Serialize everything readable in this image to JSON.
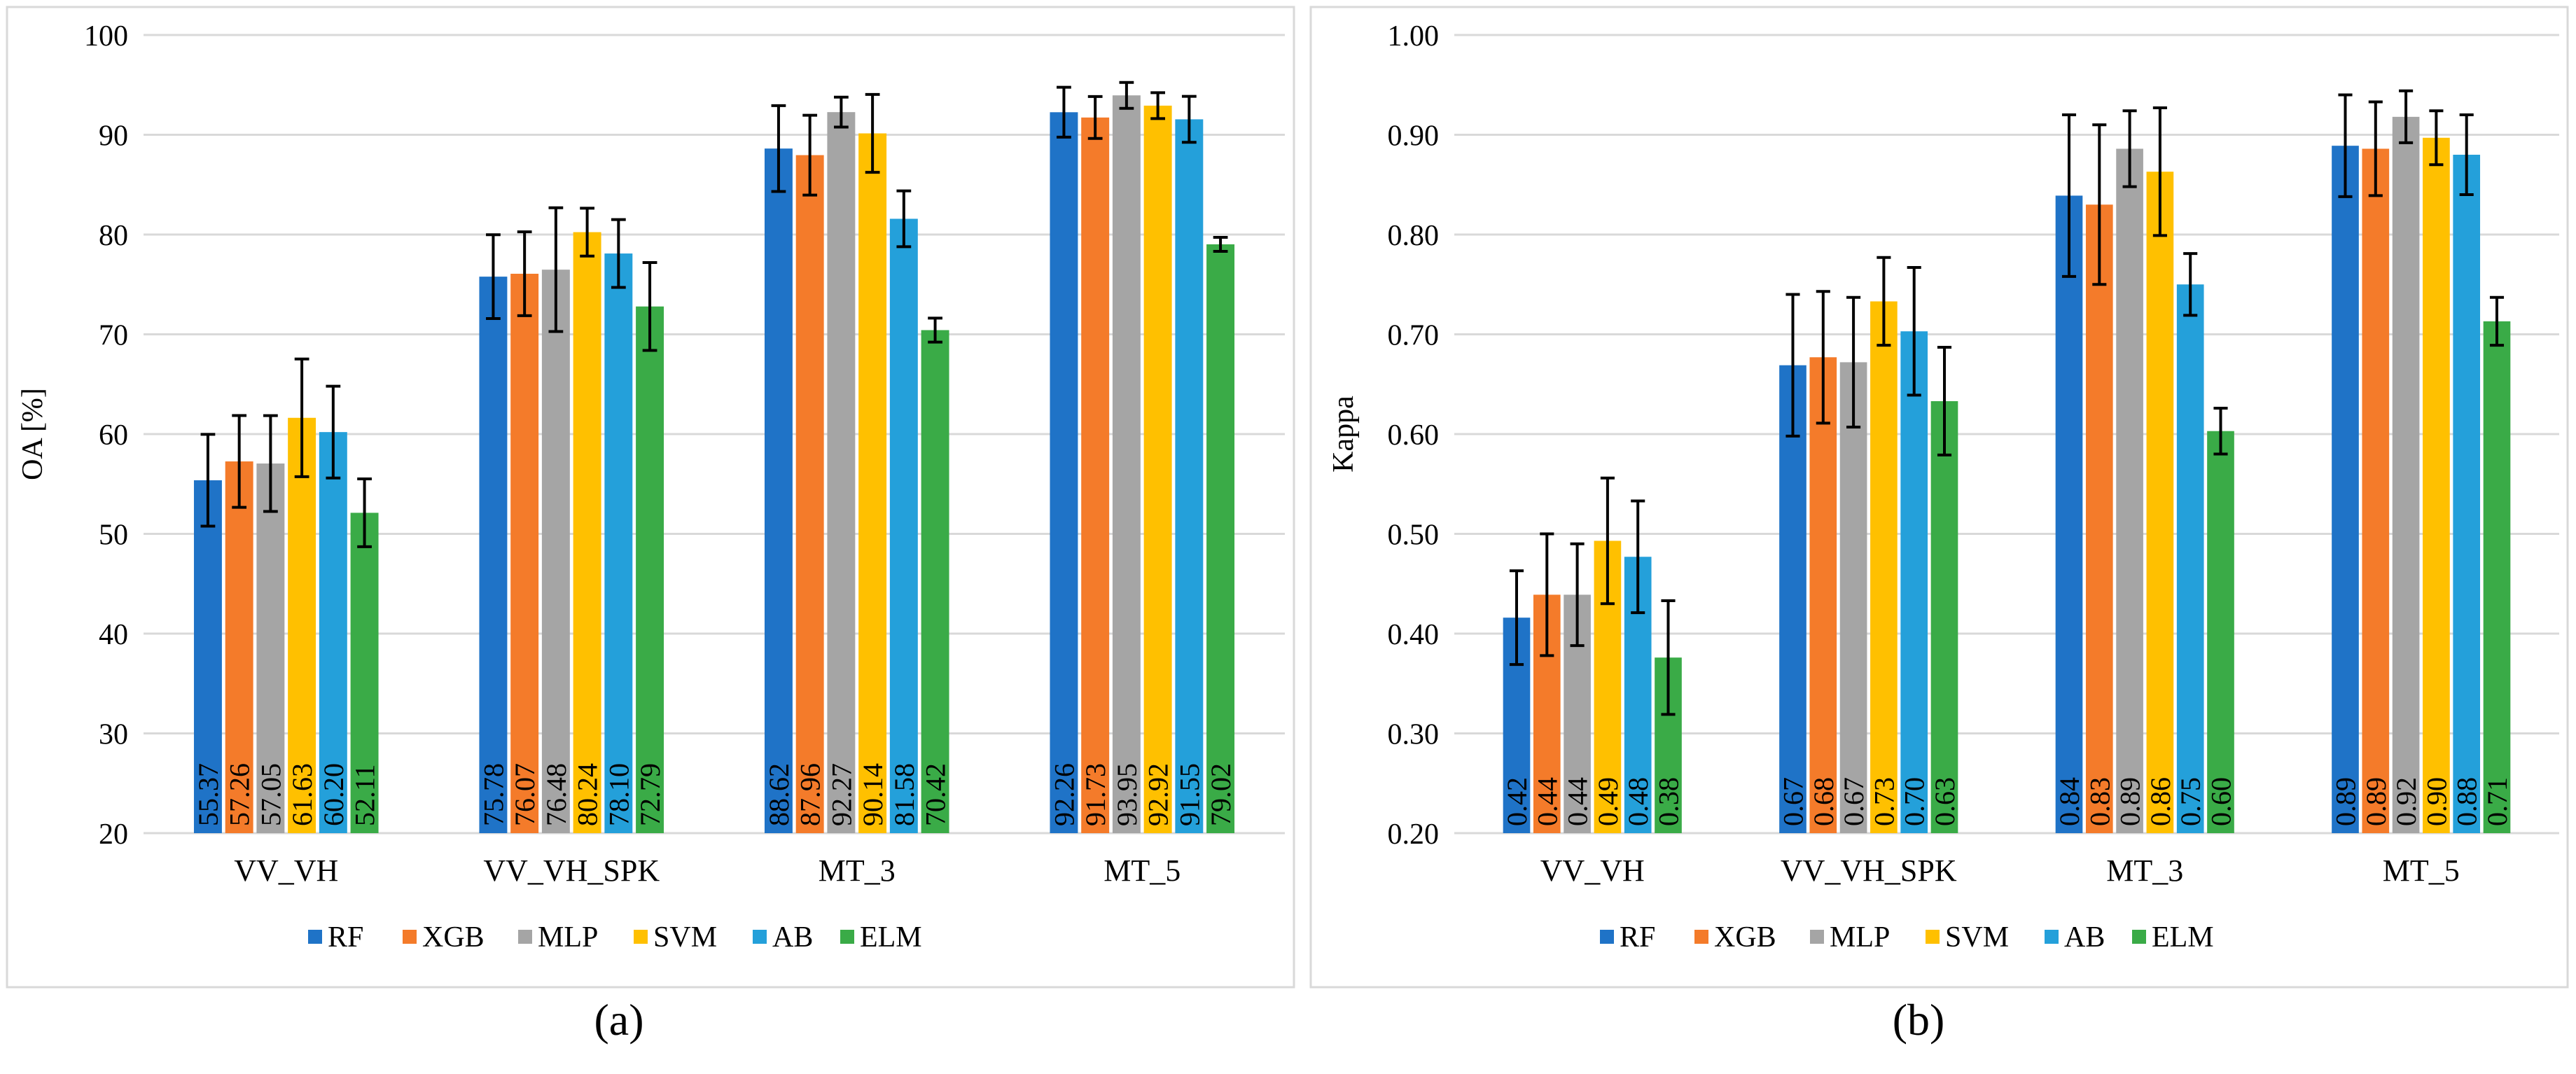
{
  "figure": {
    "panel_labels": [
      "(a)",
      "(b)"
    ]
  },
  "chart_data": [
    {
      "type": "bar",
      "panel": "(a)",
      "title": "",
      "xlabel": "",
      "ylabel": "OA [%]",
      "ylim": [
        20,
        100
      ],
      "ytick_step": 10,
      "ytick_decimals": 0,
      "value_decimals": 2,
      "grid": true,
      "legend_position": "bottom",
      "categories": [
        "VV_VH",
        "VV_VH_SPK",
        "MT_3",
        "MT_5"
      ],
      "series": [
        {
          "name": "RF",
          "color": "#1f73c7",
          "values": [
            55.37,
            75.78,
            88.62,
            92.26
          ],
          "error": [
            4.6,
            4.2,
            4.3,
            2.5
          ]
        },
        {
          "name": "XGB",
          "color": "#f47b2a",
          "values": [
            57.26,
            76.07,
            87.96,
            91.73
          ],
          "error": [
            4.6,
            4.2,
            4.0,
            2.1
          ]
        },
        {
          "name": "MLP",
          "color": "#a5a5a5",
          "values": [
            57.05,
            76.48,
            92.27,
            93.95
          ],
          "error": [
            4.8,
            6.2,
            1.5,
            1.3
          ]
        },
        {
          "name": "SVM",
          "color": "#ffc000",
          "values": [
            61.63,
            80.24,
            90.14,
            92.92
          ],
          "error": [
            5.9,
            2.4,
            3.9,
            1.3
          ]
        },
        {
          "name": "AB",
          "color": "#24a0da",
          "values": [
            60.2,
            78.1,
            81.58,
            91.55
          ],
          "error": [
            4.6,
            3.4,
            2.8,
            2.3
          ]
        },
        {
          "name": "ELM",
          "color": "#3aab47",
          "values": [
            52.11,
            72.79,
            70.42,
            79.02
          ],
          "error": [
            3.4,
            4.4,
            1.2,
            0.7
          ]
        }
      ]
    },
    {
      "type": "bar",
      "panel": "(b)",
      "title": "",
      "xlabel": "",
      "ylabel": "Kappa",
      "ylim": [
        0.2,
        1.0
      ],
      "ytick_step": 0.1,
      "ytick_decimals": 2,
      "value_decimals": 2,
      "grid": true,
      "legend_position": "bottom",
      "categories": [
        "VV_VH",
        "VV_VH_SPK",
        "MT_3",
        "MT_5"
      ],
      "series": [
        {
          "name": "RF",
          "color": "#1f73c7",
          "values": [
            0.416,
            0.669,
            0.839,
            0.889
          ],
          "error": [
            0.047,
            0.071,
            0.081,
            0.051
          ]
        },
        {
          "name": "XGB",
          "color": "#f47b2a",
          "values": [
            0.439,
            0.677,
            0.83,
            0.886
          ],
          "error": [
            0.061,
            0.066,
            0.08,
            0.047
          ]
        },
        {
          "name": "MLP",
          "color": "#a5a5a5",
          "values": [
            0.439,
            0.672,
            0.886,
            0.918
          ],
          "error": [
            0.051,
            0.065,
            0.038,
            0.026
          ]
        },
        {
          "name": "SVM",
          "color": "#ffc000",
          "values": [
            0.493,
            0.733,
            0.863,
            0.897
          ],
          "error": [
            0.063,
            0.044,
            0.064,
            0.027
          ]
        },
        {
          "name": "AB",
          "color": "#24a0da",
          "values": [
            0.477,
            0.703,
            0.75,
            0.88
          ],
          "error": [
            0.056,
            0.064,
            0.031,
            0.04
          ]
        },
        {
          "name": "ELM",
          "color": "#3aab47",
          "values": [
            0.376,
            0.633,
            0.603,
            0.713
          ],
          "error": [
            0.057,
            0.054,
            0.023,
            0.024
          ]
        }
      ]
    }
  ]
}
